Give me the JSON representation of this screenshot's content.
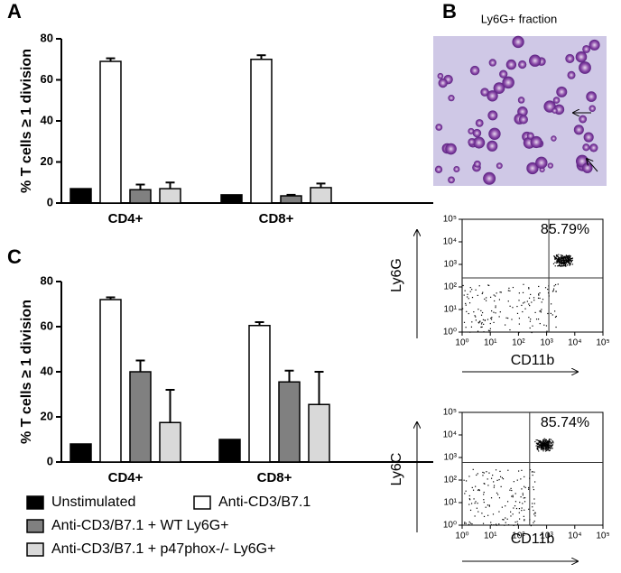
{
  "panels": {
    "a": "A",
    "b": "B",
    "c": "C"
  },
  "image_title": "Ly6G+ fraction",
  "chart_data": [
    {
      "type": "bar",
      "ylabel": "% T cells ≥ 1 division",
      "categories": [
        "CD4+",
        "CD8+"
      ],
      "ylim": [
        0,
        80
      ],
      "yticks": [
        0,
        20,
        40,
        60,
        80
      ],
      "series": [
        {
          "color": "#000000",
          "values": [
            7,
            4
          ],
          "errors": [
            0,
            0
          ]
        },
        {
          "color": "#ffffff",
          "values": [
            69,
            70
          ],
          "errors": [
            1.5,
            2
          ]
        },
        {
          "color": "#808080",
          "values": [
            6.5,
            3.5
          ],
          "errors": [
            2.5,
            0.5
          ]
        },
        {
          "color": "#d9d9d9",
          "values": [
            7,
            7.5
          ],
          "errors": [
            3,
            2
          ]
        }
      ]
    },
    {
      "type": "bar",
      "ylabel": "% T cells ≥ 1 division",
      "categories": [
        "CD4+",
        "CD8+"
      ],
      "ylim": [
        0,
        80
      ],
      "yticks": [
        0,
        20,
        40,
        60,
        80
      ],
      "series": [
        {
          "name": "Unstimulated",
          "color": "#000000",
          "values": [
            8,
            10
          ],
          "errors": [
            0,
            0
          ]
        },
        {
          "name": "Anti-CD3/B7.1",
          "color": "#ffffff",
          "values": [
            72,
            60.5
          ],
          "errors": [
            1,
            1.5
          ]
        },
        {
          "name": "Anti-CD3/B7.1 + WT Ly6G+",
          "color": "#808080",
          "values": [
            40,
            35.5
          ],
          "errors": [
            5,
            5
          ]
        },
        {
          "name": "Anti-CD3/B7.1 + p47phox-/- Ly6G+",
          "color": "#d9d9d9",
          "values": [
            17.5,
            25.5
          ],
          "errors": [
            14.5,
            14.5
          ]
        }
      ]
    },
    {
      "type": "flow",
      "xlabel": "CD11b",
      "ylabel": "Ly6G",
      "annotation": "85.79%",
      "log_scale": true,
      "xlim": [
        1,
        100000
      ],
      "ylim": [
        1,
        100000
      ],
      "gate_x": 1200,
      "gate_y": 250,
      "xticks": [
        {
          "value": 1,
          "label": "10⁰"
        },
        {
          "value": 10,
          "label": "10¹"
        },
        {
          "value": 100,
          "label": "10²"
        },
        {
          "value": 1000,
          "label": "10³"
        },
        {
          "value": 10000,
          "label": "10⁴"
        },
        {
          "value": 100000,
          "label": "10⁵"
        }
      ],
      "yticks": [
        {
          "value": 1,
          "label": "10⁰"
        },
        {
          "value": 10,
          "label": "10¹"
        },
        {
          "value": 100,
          "label": "10²"
        },
        {
          "value": 1000,
          "label": "10³"
        },
        {
          "value": 10000,
          "label": "10⁴"
        },
        {
          "value": 100000,
          "label": "10⁵"
        }
      ]
    },
    {
      "type": "flow",
      "xlabel": "CD11b",
      "ylabel": "Ly6C",
      "annotation": "85.74%",
      "log_scale": true,
      "xlim": [
        1,
        100000
      ],
      "ylim": [
        1,
        100000
      ],
      "gate_x": 250,
      "gate_y": 600,
      "xticks": [
        {
          "value": 1,
          "label": "10⁰"
        },
        {
          "value": 10,
          "label": "10¹"
        },
        {
          "value": 100,
          "label": "10²"
        },
        {
          "value": 1000,
          "label": "10³"
        },
        {
          "value": 10000,
          "label": "10⁴"
        },
        {
          "value": 100000,
          "label": "10⁵"
        }
      ],
      "yticks": [
        {
          "value": 1,
          "label": "10⁰"
        },
        {
          "value": 10,
          "label": "10¹"
        },
        {
          "value": 100,
          "label": "10²"
        },
        {
          "value": 1000,
          "label": "10³"
        },
        {
          "value": 10000,
          "label": "10⁴"
        },
        {
          "value": 100000,
          "label": "10⁵"
        }
      ]
    }
  ]
}
